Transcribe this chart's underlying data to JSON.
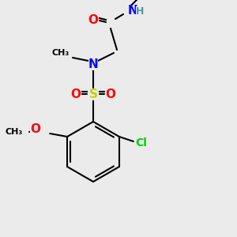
{
  "bg_color": "#ebebeb",
  "bond_color": "#000000",
  "bond_lw": 1.5,
  "atom_colors": {
    "O": "#ff0000",
    "N": "#0000ff",
    "S": "#cccc00",
    "Cl": "#00cc00",
    "H": "#4d9999",
    "C": "#000000"
  },
  "font_size": 9,
  "bold_font_size": 9
}
